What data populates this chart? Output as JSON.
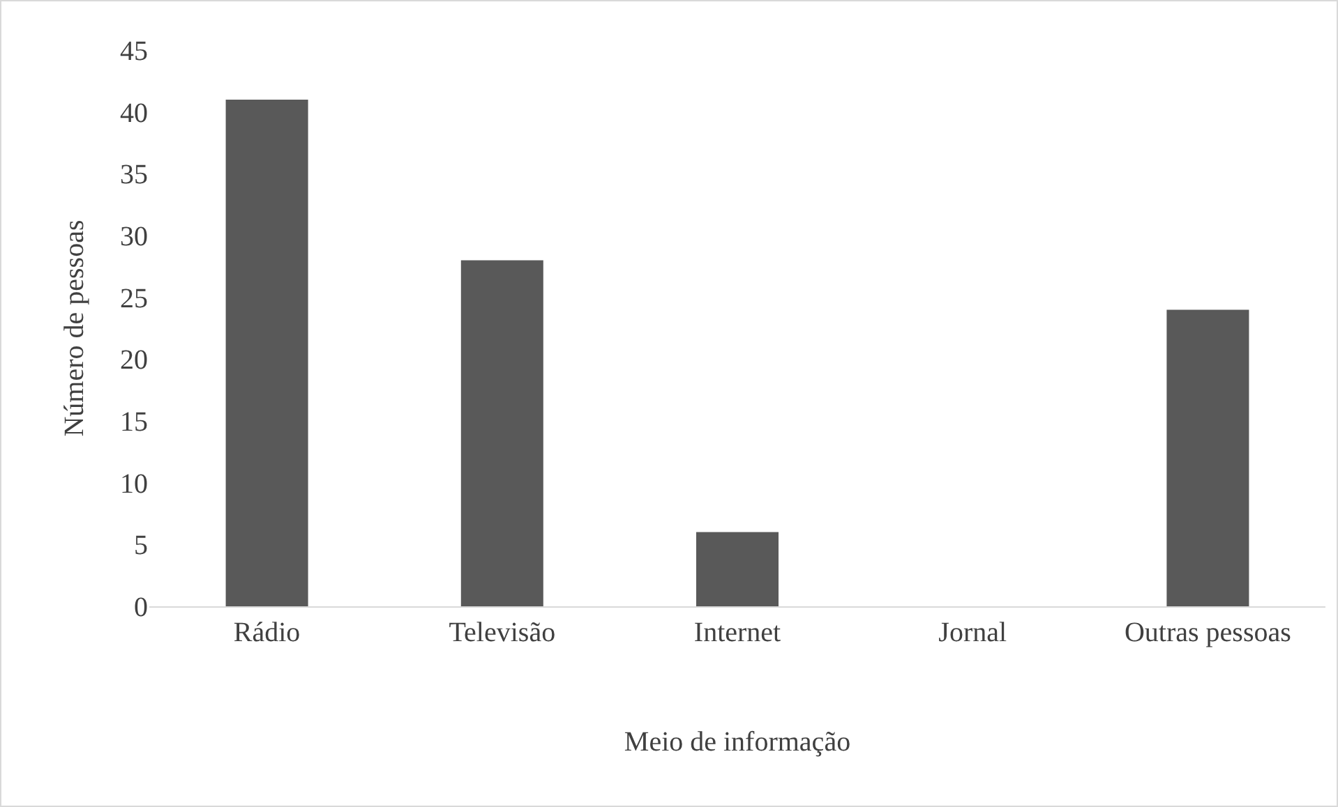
{
  "chart_data": {
    "type": "bar",
    "xlabel": "Meio de informação",
    "ylabel": "Número de pessoas",
    "categories": [
      "Rádio",
      "Televisão",
      "Internet",
      "Jornal",
      "Outras pessoas"
    ],
    "values": [
      41,
      28,
      6,
      0,
      24
    ],
    "color": "#595959",
    "ylim": [
      0,
      45
    ],
    "yticks": [
      0,
      5,
      10,
      15,
      20,
      25,
      30,
      35,
      40,
      45
    ]
  }
}
